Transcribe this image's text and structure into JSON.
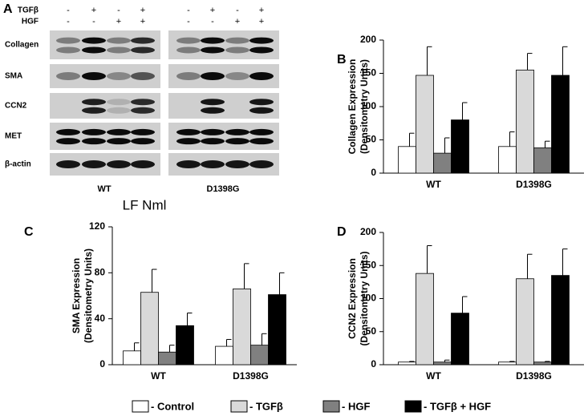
{
  "blot": {
    "panel": "A",
    "treatments": [
      {
        "name": "TGFβ",
        "signs": [
          "-",
          "+",
          "-",
          "+",
          "-",
          "+",
          "-",
          "+"
        ]
      },
      {
        "name": "HGF",
        "signs": [
          "-",
          "-",
          "+",
          "+",
          "-",
          "-",
          "+",
          "+"
        ]
      }
    ],
    "rows": [
      "Collagen",
      "SMA",
      "CCN2",
      "MET",
      "β-actin"
    ],
    "groups": [
      "WT",
      "D1398G"
    ],
    "caption": "LF Nml"
  },
  "legend": [
    {
      "name": "- Control",
      "color": "#ffffff"
    },
    {
      "name": "- TGFβ",
      "color": "#d9d9d9"
    },
    {
      "name": "- HGF",
      "color": "#808080"
    },
    {
      "name": "- TGFβ + HGF",
      "color": "#000000"
    }
  ],
  "chart_data": [
    {
      "type": "bar",
      "panel": "B",
      "ylabel": "Collagen Expression",
      "ylabel_unit": "(Densitometry Units)",
      "categories": [
        "WT",
        "D1398G"
      ],
      "series": [
        {
          "values": [
            40,
            40
          ],
          "errors": [
            20,
            22
          ]
        },
        {
          "values": [
            147,
            155
          ],
          "errors": [
            43,
            25
          ]
        },
        {
          "values": [
            30,
            38
          ],
          "errors": [
            23,
            10
          ]
        },
        {
          "values": [
            80,
            147
          ],
          "errors": [
            26,
            43
          ]
        }
      ],
      "ylim": [
        0,
        200
      ],
      "yticks": [
        0,
        50,
        100,
        150,
        200
      ]
    },
    {
      "type": "bar",
      "panel": "C",
      "ylabel": "SMA Expression",
      "ylabel_unit": "(Densitometry Units)",
      "categories": [
        "WT",
        "D1398G"
      ],
      "series": [
        {
          "values": [
            12,
            16
          ],
          "errors": [
            7,
            6
          ]
        },
        {
          "values": [
            63,
            66
          ],
          "errors": [
            20,
            22
          ]
        },
        {
          "values": [
            11,
            17
          ],
          "errors": [
            6,
            10
          ]
        },
        {
          "values": [
            34,
            61
          ],
          "errors": [
            11,
            19
          ]
        }
      ],
      "ylim": [
        0,
        120
      ],
      "yticks": [
        0,
        40,
        80,
        120
      ]
    },
    {
      "type": "bar",
      "panel": "D",
      "ylabel": "CCN2 Expression",
      "ylabel_unit": "(Densitometry Units)",
      "categories": [
        "WT",
        "D1398G"
      ],
      "series": [
        {
          "values": [
            4,
            4
          ],
          "errors": [
            1,
            1
          ]
        },
        {
          "values": [
            138,
            130
          ],
          "errors": [
            42,
            37
          ]
        },
        {
          "values": [
            4,
            4
          ],
          "errors": [
            3,
            1
          ]
        },
        {
          "values": [
            78,
            135
          ],
          "errors": [
            25,
            40
          ]
        }
      ],
      "ylim": [
        0,
        200
      ],
      "yticks": [
        0,
        50,
        100,
        150,
        200
      ]
    }
  ]
}
